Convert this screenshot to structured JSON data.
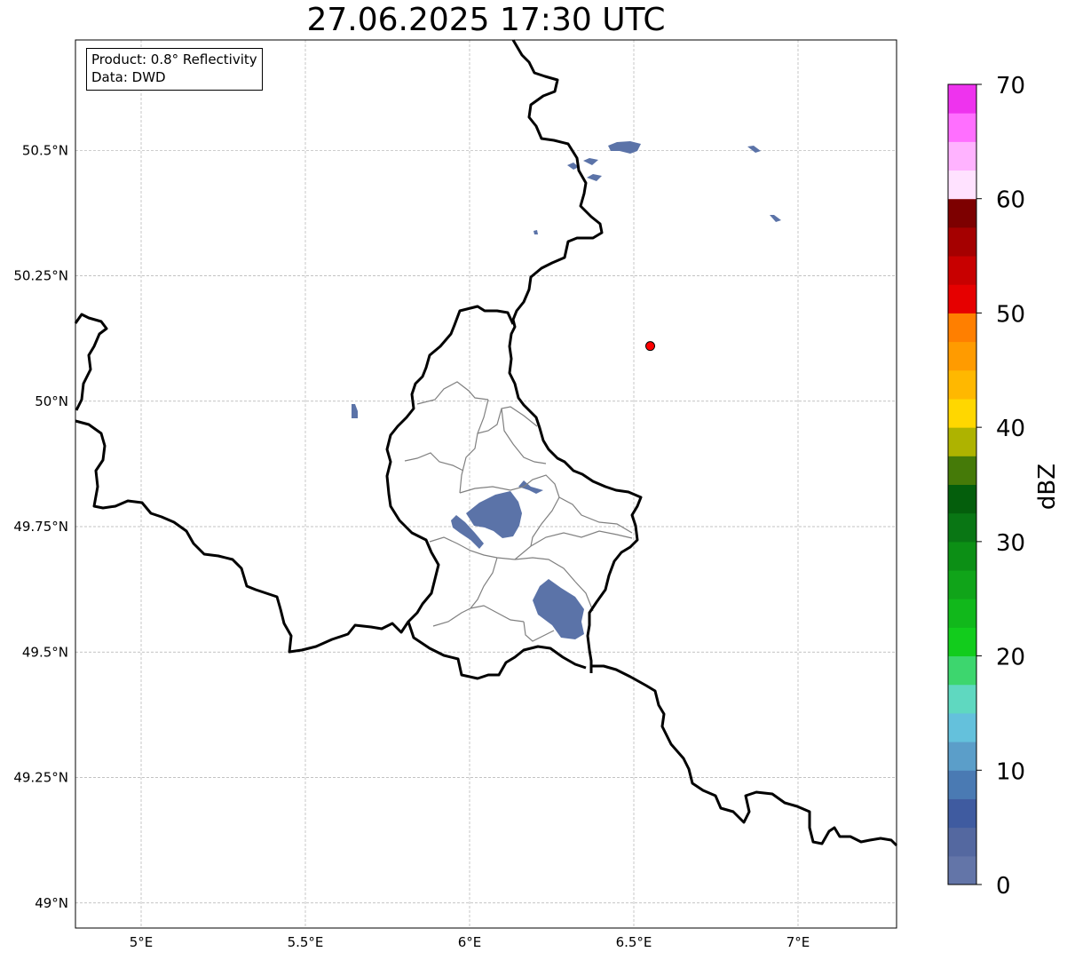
{
  "title": "27.06.2025 17:30 UTC",
  "info": {
    "product": "Product: 0.8° Reflectivity",
    "source": "Data: DWD"
  },
  "map": {
    "lon_range": [
      4.8,
      7.3
    ],
    "lat_range": [
      48.95,
      50.72
    ],
    "lon_ticks": [
      {
        "value": 5.0,
        "label": "5°E"
      },
      {
        "value": 5.5,
        "label": "5.5°E"
      },
      {
        "value": 6.0,
        "label": "6°E"
      },
      {
        "value": 6.5,
        "label": "6.5°E"
      },
      {
        "value": 7.0,
        "label": "7°E"
      }
    ],
    "lat_ticks": [
      {
        "value": 49.0,
        "label": "49°N"
      },
      {
        "value": 49.25,
        "label": "49.25°N"
      },
      {
        "value": 49.5,
        "label": "49.5°N"
      },
      {
        "value": 49.75,
        "label": "49.75°N"
      },
      {
        "value": 50.0,
        "label": "50°N"
      },
      {
        "value": 50.25,
        "label": "50.25°N"
      },
      {
        "value": 50.5,
        "label": "50.5°N"
      }
    ],
    "grid": true,
    "marker": {
      "lon": 6.55,
      "lat": 50.11,
      "color": "#ff0000"
    },
    "echo_color": "#5b73a8"
  },
  "colorbar": {
    "label": "dBZ",
    "min": 0,
    "max": 70,
    "ticks": [
      0,
      10,
      20,
      30,
      40,
      50,
      60,
      70
    ],
    "colors": [
      "#6375a8",
      "#5468a0",
      "#3f5ba0",
      "#4a7ab3",
      "#5b9ec9",
      "#64c1dc",
      "#5fd8c0",
      "#3dd66e",
      "#12cc1c",
      "#11b81b",
      "#10a419",
      "#0c8f15",
      "#097614",
      "#045e0c",
      "#457a08",
      "#aeb300",
      "#ffd700",
      "#ffb800",
      "#ff9b00",
      "#ff7f00",
      "#e60000",
      "#c80000",
      "#a50000",
      "#7d0000",
      "#ffe2ff",
      "#ffb3ff",
      "#ff6fff",
      "#ee33ee"
    ]
  }
}
